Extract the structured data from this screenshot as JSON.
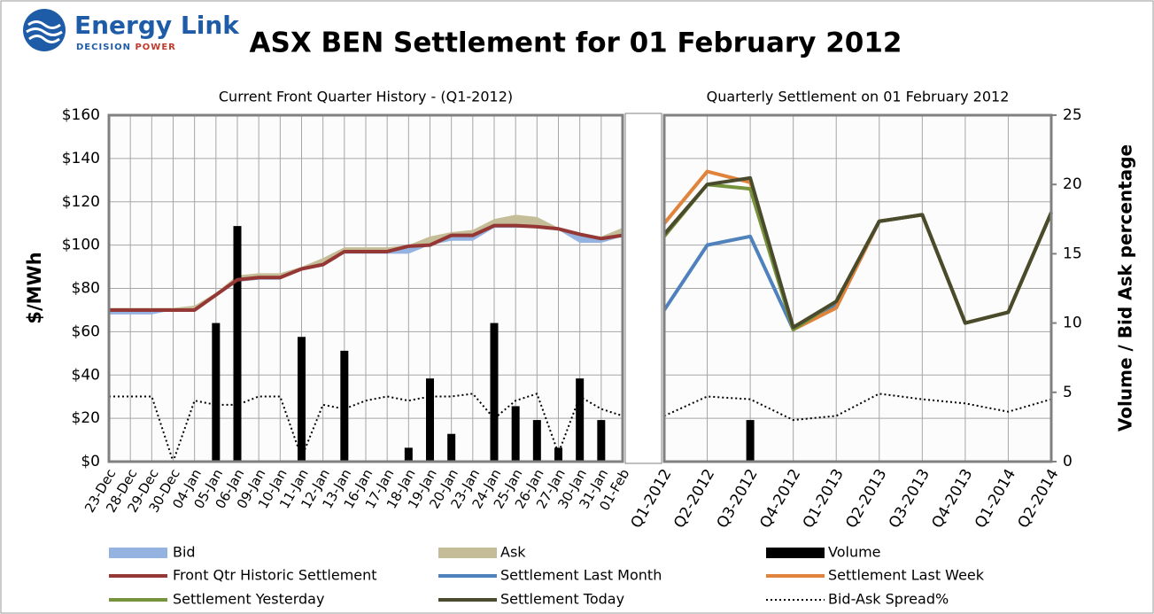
{
  "header": {
    "logo_name": "Energy Link",
    "logo_tag1": "DECISION",
    "logo_tag2": "POWER"
  },
  "chart_data": {
    "type": "combo",
    "title": "ASX BEN Settlement for 01 February 2012",
    "ylabel": "$/MWh",
    "y2label": "Volume / Bid Ask percentage",
    "ylim": [
      0,
      160
    ],
    "yticks": [
      {
        "value": 0,
        "label": "$0"
      },
      {
        "value": 20,
        "label": "$20"
      },
      {
        "value": 40,
        "label": "$40"
      },
      {
        "value": 60,
        "label": "$60"
      },
      {
        "value": 80,
        "label": "$80"
      },
      {
        "value": 100,
        "label": "$100"
      },
      {
        "value": 120,
        "label": "$120"
      },
      {
        "value": 140,
        "label": "$140"
      },
      {
        "value": 160,
        "label": "$160"
      }
    ],
    "y2lim": [
      0,
      25
    ],
    "y2ticks": [
      0,
      5,
      10,
      15,
      20,
      25
    ],
    "grid": true,
    "panels": [
      {
        "subtitle": "Current Front Quarter History - (Q1-2012)",
        "categories": [
          "23-Dec",
          "28-Dec",
          "29-Dec",
          "30-Dec",
          "04-Jan",
          "05-Jan",
          "06-Jan",
          "09-Jan",
          "10-Jan",
          "11-Jan",
          "12-Jan",
          "13-Jan",
          "16-Jan",
          "17-Jan",
          "18-Jan",
          "19-Jan",
          "20-Jan",
          "23-Jan",
          "24-Jan",
          "25-Jan",
          "26-Jan",
          "27-Jan",
          "30-Jan",
          "31-Jan",
          "01-Feb"
        ],
        "series": [
          {
            "name": "Bid",
            "type": "area",
            "color": "#95b3e0",
            "values": [
              68,
              68,
              68,
              70,
              70,
              76,
              83,
              84,
              84,
              89,
              91,
              96,
              96,
              96,
              96,
              100,
              102,
              102,
              108,
              108,
              108,
              107,
              101,
              101,
              104
            ]
          },
          {
            "name": "Ask",
            "type": "area",
            "color": "#c4bd97",
            "values": [
              71,
              71,
              71,
              71,
              72,
              78,
              86,
              87,
              87,
              90,
              94,
              99,
              99,
              99,
              100,
              104,
              106,
              107,
              112,
              114,
              113,
              108,
              105,
              104,
              108
            ]
          },
          {
            "name": "Volume",
            "type": "bar",
            "axis": "y2",
            "color": "#000000",
            "values": [
              0,
              0,
              0,
              0,
              0,
              10,
              17,
              0,
              0,
              9,
              0,
              8,
              0,
              0,
              1,
              6,
              2,
              0,
              10,
              4,
              3,
              1,
              6,
              3,
              0
            ]
          },
          {
            "name": "Front Qtr Historic Settlement",
            "type": "line",
            "color": "#953735",
            "values": [
              70,
              70,
              70,
              70,
              70,
              77,
              84,
              85,
              85,
              89,
              91,
              97,
              97,
              97,
              99.5,
              100,
              104.5,
              104.5,
              109,
              109,
              108.5,
              107.5,
              105,
              103,
              104.5
            ]
          },
          {
            "name": "Bid-Ask Spread%",
            "type": "line",
            "dotted": true,
            "axis": "y2",
            "color": "#000000",
            "values": [
              4.7,
              4.7,
              4.7,
              0,
              4.4,
              4.1,
              4.1,
              4.7,
              4.7,
              0.3,
              4.1,
              3.8,
              4.4,
              4.7,
              4.4,
              4.7,
              4.7,
              4.9,
              3.1,
              4.4,
              4.9,
              0.6,
              4.7,
              3.8,
              3.3
            ]
          }
        ]
      },
      {
        "subtitle": "Quarterly Settlement on 01 February 2012",
        "categories": [
          "Q1-2012",
          "Q2-2012",
          "Q3-2012",
          "Q4-2012",
          "Q1-2013",
          "Q2-2013",
          "Q3-2013",
          "Q4-2013",
          "Q1-2014",
          "Q2-2014"
        ],
        "series": [
          {
            "name": "Settlement Last Month",
            "type": "line",
            "color": "#4f81bd",
            "values": [
              70,
              100,
              104,
              61,
              72,
              111,
              114,
              64,
              69,
              115
            ]
          },
          {
            "name": "Settlement Last Week",
            "type": "line",
            "color": "#e0833c",
            "values": [
              110,
              134,
              129,
              61,
              71,
              111,
              114,
              64,
              69,
              115
            ]
          },
          {
            "name": "Settlement Yesterday",
            "type": "line",
            "color": "#77933c",
            "values": [
              104,
              128,
              126,
              61,
              74,
              111,
              114,
              64,
              69,
              115
            ]
          },
          {
            "name": "Settlement Today",
            "type": "line",
            "color": "#4a4a2c",
            "values": [
              105,
              128,
              131,
              62,
              74,
              111,
              114,
              64,
              69,
              115
            ]
          },
          {
            "name": "Volume",
            "type": "bar",
            "axis": "y2",
            "color": "#000000",
            "values": [
              0,
              0,
              3,
              0,
              0,
              0,
              0,
              0,
              0,
              0
            ]
          },
          {
            "name": "Bid-Ask Spread%",
            "type": "line",
            "dotted": true,
            "axis": "y2",
            "color": "#000000",
            "values": [
              3.3,
              4.7,
              4.5,
              3.0,
              3.3,
              4.9,
              4.5,
              4.2,
              3.6,
              4.5
            ]
          }
        ]
      }
    ]
  }
}
